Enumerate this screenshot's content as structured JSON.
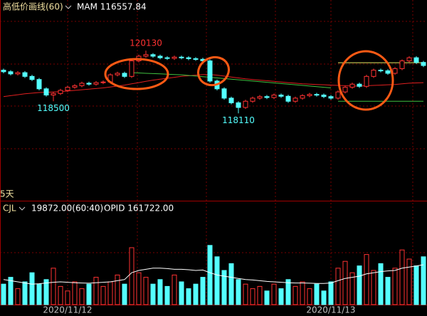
{
  "chart_data": {
    "type": "candlestick",
    "indicator_title": "高低价画线(60)",
    "indicator_value": "MAM 116557.84",
    "period_label": "5天",
    "volume_title": "CJL",
    "volume_value": "19872.00(60:40)",
    "volume_line_value": "OPID 161722.00",
    "categories": [
      null,
      null,
      null,
      null,
      null,
      null,
      null,
      null,
      null,
      "2020/11/12",
      null,
      null,
      null,
      null,
      null,
      null,
      null,
      null,
      null,
      null,
      null,
      null,
      null,
      null,
      null,
      null,
      null,
      null,
      null,
      null,
      null,
      null,
      null,
      null,
      null,
      null,
      null,
      null,
      null,
      null,
      null,
      null,
      null,
      null,
      null,
      null,
      "2020/11/13",
      null,
      null,
      null,
      null,
      null,
      null,
      null,
      null,
      null,
      null,
      null,
      null,
      null
    ],
    "open": [
      119500,
      119450,
      119380,
      119420,
      119300,
      119200,
      118900,
      118700,
      118750,
      118850,
      118950,
      119000,
      119080,
      119050,
      119100,
      119120,
      119350,
      119400,
      119300,
      119800,
      119950,
      120000,
      119950,
      119900,
      119880,
      119920,
      119900,
      119870,
      119850,
      119800,
      119150,
      118900,
      118600,
      118450,
      118300,
      118500,
      118600,
      118650,
      118620,
      118700,
      118660,
      118500,
      118600,
      118680,
      118720,
      118700,
      118650,
      118600,
      118800,
      118950,
      119050,
      118980,
      119300,
      119500,
      119480,
      119400,
      119550,
      119800,
      119900,
      119750
    ],
    "high": [
      119550,
      119500,
      119470,
      119470,
      119350,
      119250,
      118950,
      118800,
      118900,
      119000,
      119050,
      119130,
      119130,
      119150,
      119170,
      119400,
      119450,
      119450,
      119850,
      120000,
      120130,
      120050,
      120000,
      119950,
      119970,
      119970,
      119950,
      119920,
      119900,
      119850,
      119200,
      118950,
      118650,
      118500,
      118550,
      118650,
      118700,
      118700,
      118750,
      118750,
      118710,
      118650,
      118730,
      118770,
      118770,
      118750,
      118700,
      118850,
      119000,
      119100,
      119100,
      119350,
      119550,
      119550,
      119530,
      119600,
      119850,
      119950,
      119950,
      119800
    ],
    "low": [
      119400,
      119330,
      119330,
      119250,
      119150,
      118850,
      118650,
      118500,
      118700,
      118800,
      118900,
      118950,
      119000,
      119000,
      119050,
      119070,
      119300,
      119250,
      119250,
      119750,
      119900,
      119900,
      119850,
      119830,
      119830,
      119850,
      119820,
      119800,
      119750,
      119100,
      118850,
      118550,
      118400,
      118110,
      118250,
      118450,
      118550,
      118570,
      118570,
      118610,
      118450,
      118450,
      118550,
      118630,
      118650,
      118600,
      118550,
      118550,
      118750,
      118900,
      118930,
      118930,
      119250,
      119430,
      119350,
      119350,
      119500,
      119750,
      119700,
      119600
    ],
    "close": [
      119450,
      119380,
      119420,
      119300,
      119200,
      118900,
      118700,
      118750,
      118850,
      118950,
      119000,
      119080,
      119050,
      119100,
      119120,
      119350,
      119400,
      119300,
      119800,
      119950,
      120000,
      119950,
      119900,
      119880,
      119920,
      119900,
      119870,
      119850,
      119800,
      119150,
      118900,
      118600,
      118450,
      118300,
      118500,
      118600,
      118650,
      118620,
      118700,
      118660,
      118500,
      118600,
      118680,
      118720,
      118700,
      118650,
      118600,
      118800,
      118950,
      119050,
      118980,
      119300,
      119500,
      119480,
      119400,
      119550,
      119800,
      119900,
      119750,
      119650
    ],
    "ylim": [
      115300,
      121300
    ],
    "up_color": "#ff3232",
    "down_color": "#54ffff",
    "overlays": [
      {
        "color": "#e02020",
        "values": [
          118650,
          118680,
          118710,
          118740,
          118760,
          118780,
          118790,
          118800,
          118810,
          118830,
          118850,
          118870,
          118890,
          118910,
          118930,
          118960,
          118990,
          119020,
          119060,
          119100,
          119140,
          119180,
          119210,
          119240,
          119270,
          119300,
          119320,
          119340,
          119360,
          119360,
          119340,
          119310,
          119280,
          119250,
          119220,
          119200,
          119180,
          119160,
          119140,
          119120,
          119100,
          119080,
          119060,
          119050,
          119040,
          119030,
          119020,
          119010,
          119000,
          118990,
          118990,
          119000,
          119010,
          119020,
          119030,
          119040,
          119060,
          119080,
          119090,
          119100
        ]
      },
      {
        "color": "#40c040",
        "values": [
          null,
          null,
          null,
          null,
          null,
          null,
          null,
          null,
          null,
          null,
          null,
          null,
          null,
          null,
          null,
          null,
          null,
          null,
          119420,
          119410,
          119400,
          119390,
          119380,
          119370,
          119360,
          119350,
          119330,
          119310,
          119290,
          119270,
          119250,
          119230,
          119210,
          119190,
          119170,
          119150,
          119130,
          119110,
          119090,
          119070,
          119050,
          119030,
          119010,
          118990,
          118970,
          118950,
          118930,
          null,
          null,
          null,
          null,
          null,
          null,
          null,
          null,
          null,
          null,
          null,
          null,
          null
        ]
      },
      {
        "color": "#e8e860",
        "values": [
          null,
          null,
          null,
          null,
          null,
          null,
          null,
          null,
          null,
          null,
          null,
          null,
          null,
          null,
          null,
          null,
          null,
          null,
          null,
          null,
          null,
          null,
          null,
          null,
          null,
          null,
          null,
          null,
          null,
          null,
          null,
          null,
          null,
          null,
          null,
          null,
          null,
          null,
          null,
          null,
          null,
          null,
          null,
          null,
          null,
          null,
          null,
          119740,
          119740,
          119740,
          119740,
          119740,
          119740,
          119740,
          119740,
          119740,
          119740,
          119740,
          119740,
          119740
        ]
      },
      {
        "color": "#40c040",
        "values": [
          null,
          null,
          null,
          null,
          null,
          null,
          null,
          null,
          null,
          null,
          null,
          null,
          null,
          null,
          null,
          null,
          null,
          null,
          null,
          null,
          null,
          null,
          null,
          null,
          null,
          null,
          null,
          null,
          null,
          null,
          null,
          null,
          null,
          null,
          null,
          null,
          null,
          null,
          null,
          null,
          null,
          null,
          null,
          null,
          null,
          null,
          null,
          118500,
          118500,
          118500,
          118500,
          118500,
          118500,
          118500,
          118500,
          118500,
          118500,
          118500,
          118500,
          118500
        ]
      }
    ],
    "volume": [
      9000,
      12000,
      7000,
      10000,
      14000,
      9000,
      11000,
      16000,
      8000,
      6000,
      10000,
      7000,
      9000,
      12000,
      8000,
      10000,
      13000,
      9000,
      25000,
      14000,
      12000,
      9000,
      11000,
      8000,
      13000,
      10000,
      7000,
      9000,
      12000,
      26000,
      21000,
      15000,
      18000,
      11000,
      9000,
      7000,
      8000,
      6000,
      9000,
      7000,
      11000,
      8000,
      10000,
      7000,
      9000,
      6000,
      10000,
      16000,
      19000,
      14000,
      17000,
      22000,
      15000,
      18000,
      12000,
      16000,
      24000,
      20000,
      17000,
      21000
    ],
    "volume_ylim": [
      0,
      40000
    ],
    "volume_line": {
      "color": "#ffffff",
      "values": [
        11000,
        10500,
        10000,
        9500,
        9000,
        9200,
        9500,
        9800,
        10000,
        9800,
        9600,
        9500,
        9400,
        9600,
        9800,
        10000,
        10500,
        11000,
        14000,
        15000,
        15500,
        16000,
        16000,
        15800,
        15500,
        15500,
        15300,
        15000,
        15200,
        14000,
        13000,
        12500,
        12000,
        11500,
        11000,
        10800,
        10500,
        10200,
        10000,
        9800,
        9600,
        9500,
        9500,
        9400,
        9300,
        9300,
        9500,
        10500,
        11500,
        12000,
        12500,
        13500,
        14000,
        14500,
        14800,
        15000,
        16000,
        16500,
        17000,
        17500
      ]
    }
  }
}
